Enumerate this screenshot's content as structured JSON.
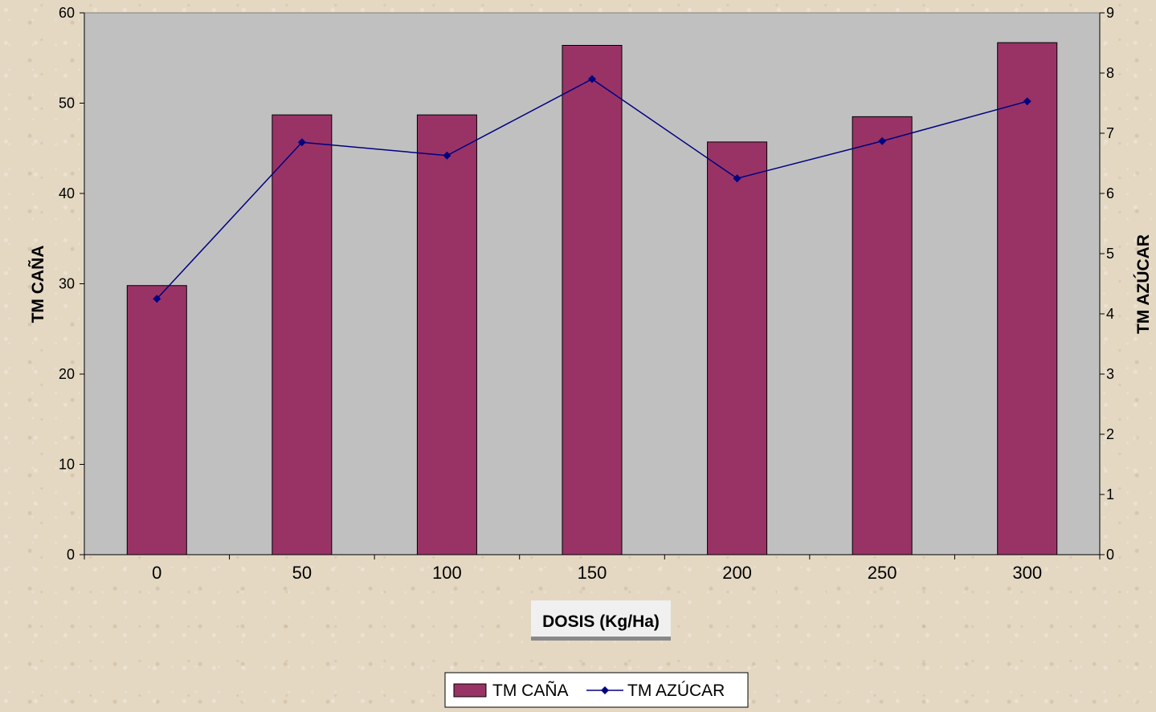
{
  "chart_data": {
    "type": "bar",
    "categories": [
      "0",
      "50",
      "100",
      "150",
      "200",
      "250",
      "300"
    ],
    "xlabel": "DOSIS (Kg/Ha)",
    "ylabel": "TM CAÑA",
    "y2label": "TM AZÚCAR",
    "ylim": [
      0,
      60
    ],
    "y_ticks": [
      0,
      10,
      20,
      30,
      40,
      50,
      60
    ],
    "y2lim": [
      0,
      9
    ],
    "y2_ticks": [
      0,
      1,
      2,
      3,
      4,
      5,
      6,
      7,
      8,
      9
    ],
    "grid": false,
    "legend_position": "bottom",
    "series": [
      {
        "name": "TM CAÑA",
        "type": "bar",
        "axis": "left",
        "color": "#993366",
        "values": [
          29.8,
          48.7,
          48.7,
          56.4,
          45.7,
          48.5,
          56.7
        ]
      },
      {
        "name": "TM AZÚCAR",
        "type": "line",
        "axis": "right",
        "color": "#000080",
        "marker": "diamond",
        "values": [
          4.25,
          6.85,
          6.63,
          7.9,
          6.25,
          6.87,
          7.53
        ]
      }
    ],
    "plot_background": "#c0c0c0"
  }
}
